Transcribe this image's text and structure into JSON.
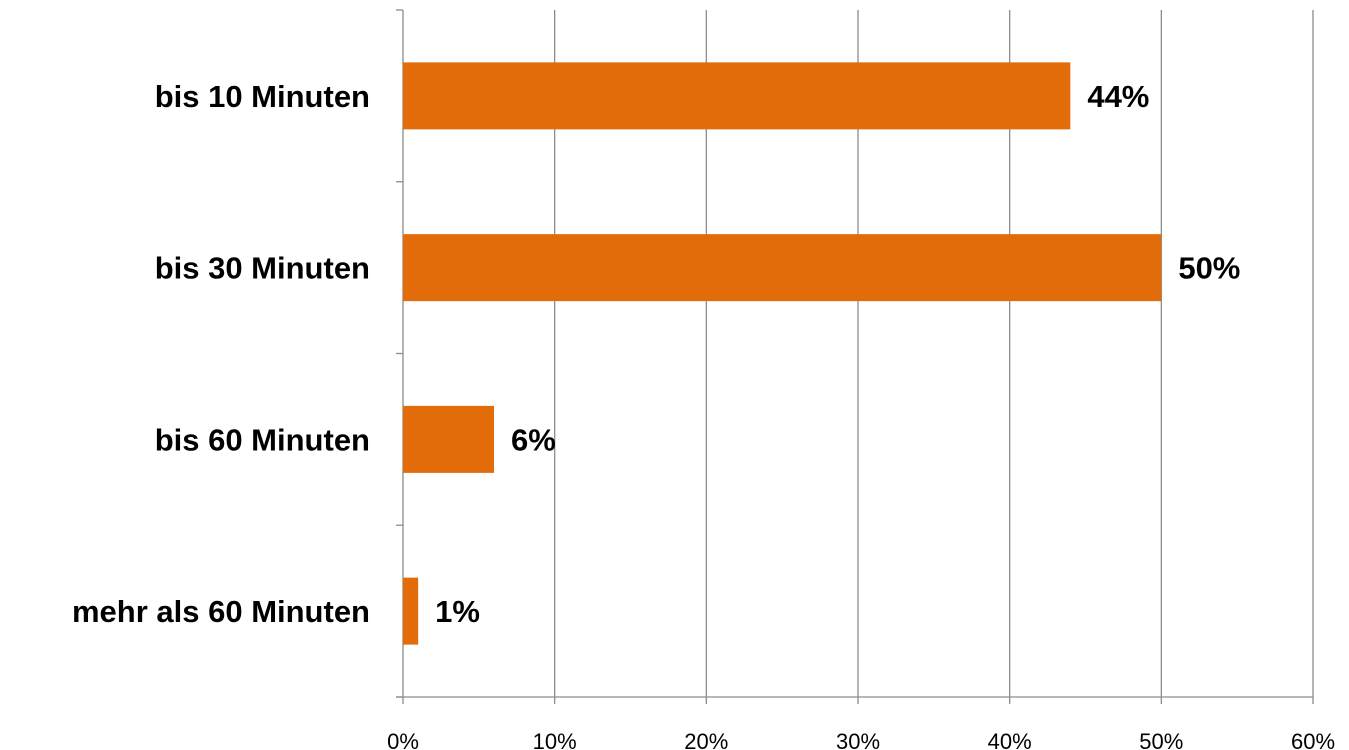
{
  "chart_data": {
    "type": "bar",
    "orientation": "horizontal",
    "categories": [
      "bis 10 Minuten",
      "bis 30 Minuten",
      "bis 60 Minuten",
      "mehr als 60 Minuten"
    ],
    "values": [
      44,
      50,
      6,
      1
    ],
    "value_labels": [
      "44%",
      "50%",
      "6%",
      "1%"
    ],
    "xlim": [
      0,
      60
    ],
    "x_ticks": [
      0,
      10,
      20,
      30,
      40,
      50,
      60
    ],
    "x_tick_labels": [
      "0%",
      "10%",
      "20%",
      "30%",
      "40%",
      "50%",
      "60%"
    ],
    "grid": true,
    "legend": "none",
    "bar_color": "#e36c0a"
  }
}
